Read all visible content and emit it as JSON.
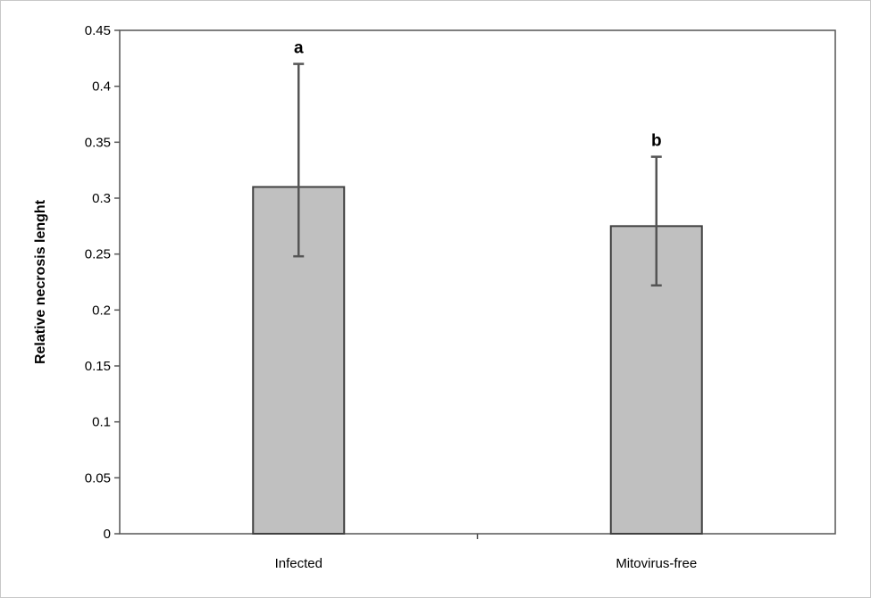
{
  "chart_data": {
    "type": "bar",
    "ylabel": "Relative necrosis lenght",
    "xlabel": "",
    "categories": [
      "Infected",
      "Mitovirus-free"
    ],
    "values": [
      0.31,
      0.275
    ],
    "error_low": [
      0.248,
      0.222
    ],
    "error_high": [
      0.42,
      0.337
    ],
    "significance_labels": [
      "a",
      "b"
    ],
    "ylim": [
      0,
      0.45
    ],
    "yticks": [
      "0",
      "0.05",
      "0.1",
      "0.15",
      "0.2",
      "0.25",
      "0.3",
      "0.35",
      "0.4",
      "0.45"
    ],
    "grid": false,
    "legend": "none",
    "colors": {
      "bar_fill": "#c0c0c0",
      "bar_stroke": "#404040",
      "error_bar": "#555555",
      "axis": "#555555",
      "frame": "#c8c8c8"
    }
  }
}
